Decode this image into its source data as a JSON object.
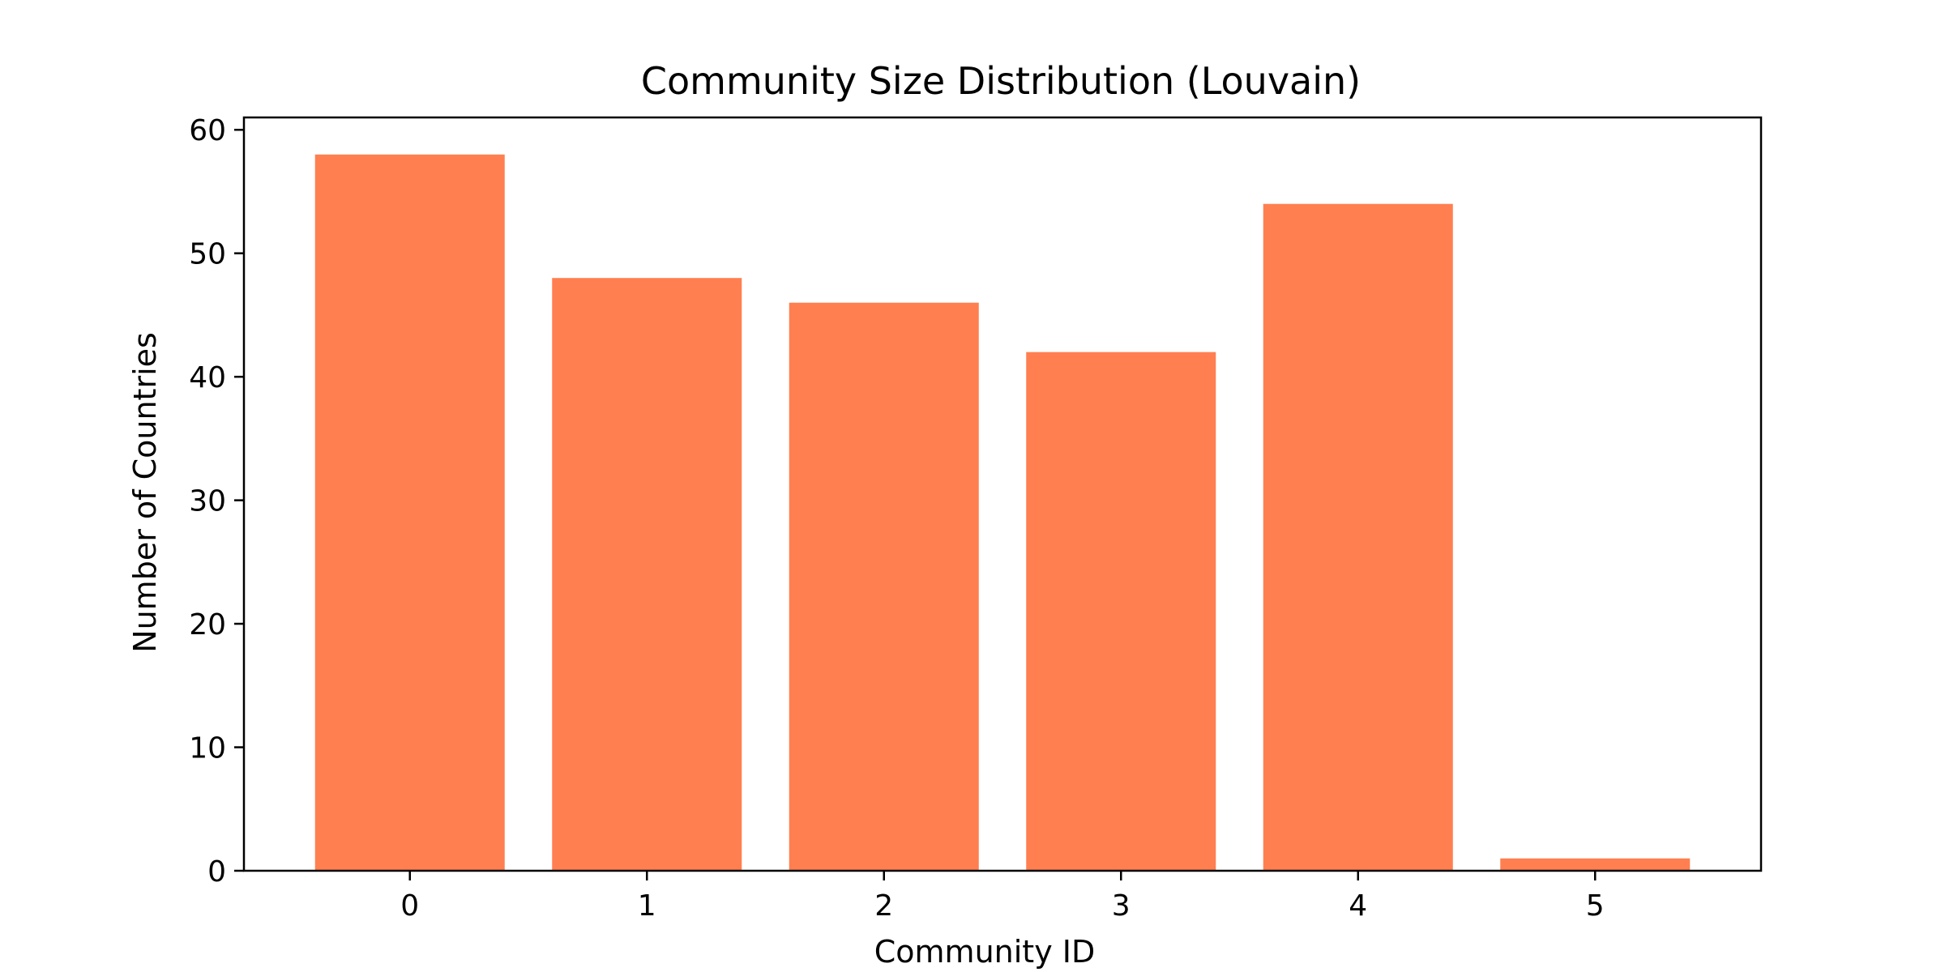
{
  "chart_data": {
    "type": "bar",
    "title": "Community Size Distribution (Louvain)",
    "xlabel": "Community ID",
    "ylabel": "Number of Countries",
    "categories": [
      "0",
      "1",
      "2",
      "3",
      "4",
      "5"
    ],
    "values": [
      58,
      48,
      46,
      42,
      54,
      1
    ],
    "ylim": [
      0,
      61
    ],
    "yticks": [
      0,
      10,
      20,
      30,
      40,
      50,
      60
    ],
    "bar_color": "#ff7f50",
    "grid": false,
    "legend": "none"
  }
}
